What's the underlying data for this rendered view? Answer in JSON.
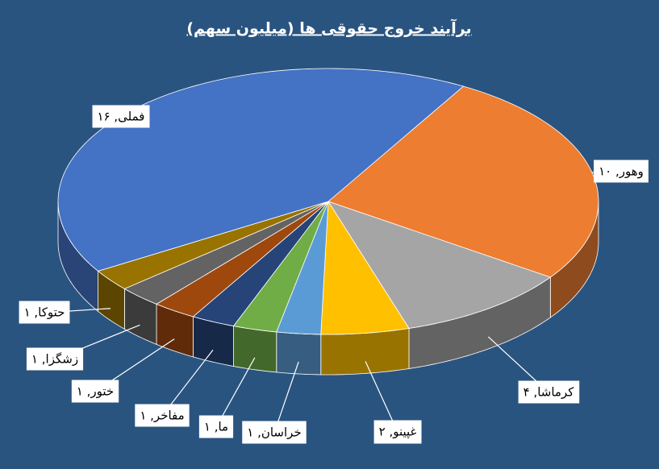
{
  "chart_data": {
    "type": "pie",
    "title": "برآیند خروج حقوقی ها (میلیون سهم)",
    "values": [
      10,
      4,
      2,
      1,
      1,
      1,
      1,
      1,
      1,
      16
    ],
    "value_labels": [
      "وهور, ۱۰",
      "کرماشا, ۴",
      "غپینو, ۲",
      "خراسان, ۱",
      "ما, ۱",
      "مفاخر, ۱",
      "ختور, ۱",
      "زشگزا, ۱",
      "حتوکا, ۱",
      "فملی, ۱۶"
    ],
    "colors": [
      "#ed7d31",
      "#a5a5a5",
      "#ffc000",
      "#5b9bd5",
      "#70ad47",
      "#264478",
      "#9e480e",
      "#636363",
      "#997300",
      "#4472c4"
    ]
  }
}
